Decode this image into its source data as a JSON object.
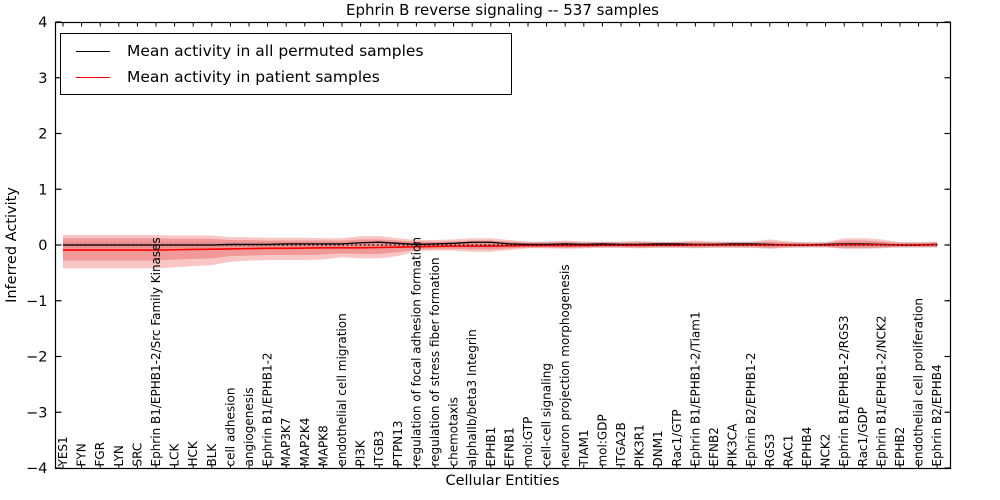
{
  "chart_data": {
    "type": "line",
    "title": "Ephrin B reverse signaling -- 537 samples",
    "xlabel": "Cellular Entities",
    "ylabel": "Inferred Activity",
    "ylim": [
      -4,
      4
    ],
    "yticks": [
      -4,
      -3,
      -2,
      -1,
      0,
      1,
      2,
      3,
      4
    ],
    "grid": false,
    "legend_position": "upper left",
    "zero_line": {
      "y": 0,
      "color": "#000000",
      "style": "dotted"
    },
    "categories": [
      "YES1",
      "FYN",
      "FGR",
      "LYN",
      "SRC",
      "Ephrin B1/EPHB1-2/Src Family Kinases",
      "LCK",
      "HCK",
      "BLK",
      "cell adhesion",
      "angiogenesis",
      "Ephrin B1/EPHB1-2",
      "MAP3K7",
      "MAP2K4",
      "MAPK8",
      "endothelial cell migration",
      "PI3K",
      "ITGB3",
      "PTPN13",
      "regulation of focal adhesion formation",
      "regulation of stress fiber formation",
      "chemotaxis",
      "alphaIIb/beta3 Integrin",
      "EPHB1",
      "EFNB1",
      "mol:GTP",
      "cell-cell signaling",
      "neuron projection morphogenesis",
      "TIAM1",
      "mol:GDP",
      "ITGA2B",
      "PIK3R1",
      "DNM1",
      "Rac1/GTP",
      "Ephrin B1/EPHB1-2/Tiam1",
      "EFNB2",
      "PIK3CA",
      "Ephrin B2/EPHB1-2",
      "RGS3",
      "RAC1",
      "EPHB4",
      "NCK2",
      "Ephrin B1/EPHB1-2/RGS3",
      "Rac1/GDP",
      "Ephrin B1/EPHB1-2/NCK2",
      "EPHB2",
      "endothelial cell proliferation",
      "Ephrin B2/EPHB4"
    ],
    "series": [
      {
        "name": "Mean activity in all permuted samples",
        "color": "#000000",
        "values": [
          0,
          0,
          0,
          0,
          0,
          0,
          0,
          0,
          0,
          0.01,
          0.01,
          0.01,
          0.02,
          0.02,
          0.02,
          0.02,
          0.04,
          0.05,
          0.03,
          0.01,
          0.02,
          0.03,
          0.05,
          0.05,
          0.02,
          0.01,
          0.01,
          0.02,
          0.01,
          0.02,
          0.01,
          0.01,
          0.02,
          0.02,
          0.01,
          0.01,
          0.02,
          0.02,
          0.01,
          0,
          0,
          0.01,
          0.02,
          0.02,
          0.01,
          0,
          0,
          0.01
        ]
      },
      {
        "name": "Mean activity in patient samples",
        "color": "#ff0000",
        "values": [
          -0.09,
          -0.09,
          -0.09,
          -0.09,
          -0.09,
          -0.09,
          -0.085,
          -0.08,
          -0.075,
          -0.07,
          -0.065,
          -0.06,
          -0.06,
          -0.055,
          -0.05,
          -0.05,
          -0.05,
          -0.045,
          -0.04,
          -0.03,
          -0.025,
          -0.02,
          -0.02,
          -0.02,
          -0.015,
          -0.01,
          -0.01,
          -0.01,
          -0.01,
          -0.005,
          -0.005,
          -0.005,
          -0.005,
          -0.005,
          0,
          0,
          0,
          0,
          0,
          0,
          0,
          0,
          0.005,
          0.005,
          0.005,
          0,
          0,
          0.01
        ]
      }
    ],
    "bands": [
      {
        "name": "permuted-sample-band",
        "color": "#d9d9d9",
        "opacity": 0.85,
        "upper": [
          0.05,
          0.05,
          0.05,
          0.05,
          0.05,
          0.05,
          0.05,
          0.05,
          0.05,
          0.05,
          0.05,
          0.05,
          0.05,
          0.05,
          0.05,
          0.05,
          0.05,
          0.05,
          0.05,
          0.05,
          0.05,
          0.05,
          0.05,
          0.05,
          0.05,
          0.05,
          0.05,
          0.05,
          0.05,
          0.05,
          0.05,
          0.05,
          0.05,
          0.05,
          0.05,
          0.05,
          0.05,
          0.05,
          0.05,
          0.05,
          0.05,
          0.05,
          0.05,
          0.05,
          0.05,
          0.05,
          0.05,
          0.05
        ],
        "lower": [
          -0.05,
          -0.05,
          -0.05,
          -0.05,
          -0.05,
          -0.05,
          -0.05,
          -0.05,
          -0.05,
          -0.05,
          -0.05,
          -0.05,
          -0.05,
          -0.05,
          -0.05,
          -0.05,
          -0.05,
          -0.05,
          -0.05,
          -0.05,
          -0.05,
          -0.05,
          -0.05,
          -0.05,
          -0.05,
          -0.05,
          -0.05,
          -0.05,
          -0.05,
          -0.05,
          -0.05,
          -0.05,
          -0.05,
          -0.05,
          -0.05,
          -0.05,
          -0.05,
          -0.05,
          -0.05,
          -0.05,
          -0.05,
          -0.05,
          -0.05,
          -0.05,
          -0.05,
          -0.05,
          -0.05,
          -0.05
        ]
      },
      {
        "name": "patient-band-outer",
        "color": "#ee6666",
        "opacity": 0.38,
        "upper": [
          0.18,
          0.18,
          0.18,
          0.18,
          0.18,
          0.18,
          0.17,
          0.17,
          0.17,
          0.14,
          0.14,
          0.13,
          0.13,
          0.13,
          0.12,
          0.12,
          0.16,
          0.16,
          0.12,
          0.09,
          0.09,
          0.1,
          0.12,
          0.12,
          0.09,
          0.06,
          0.06,
          0.08,
          0.06,
          0.06,
          0.06,
          0.07,
          0.06,
          0.06,
          0.08,
          0.06,
          0.06,
          0.06,
          0.1,
          0.06,
          0.05,
          0.05,
          0.12,
          0.12,
          0.1,
          0.05,
          0.05,
          0.06
        ],
        "lower": [
          -0.42,
          -0.42,
          -0.42,
          -0.42,
          -0.42,
          -0.42,
          -0.4,
          -0.38,
          -0.36,
          -0.3,
          -0.28,
          -0.27,
          -0.27,
          -0.27,
          -0.26,
          -0.22,
          -0.24,
          -0.24,
          -0.2,
          -0.11,
          -0.1,
          -0.1,
          -0.12,
          -0.12,
          -0.09,
          -0.06,
          -0.06,
          -0.07,
          -0.06,
          -0.05,
          -0.05,
          -0.06,
          -0.05,
          -0.05,
          -0.06,
          -0.05,
          -0.05,
          -0.05,
          -0.07,
          -0.05,
          -0.04,
          -0.04,
          -0.07,
          -0.07,
          -0.06,
          -0.04,
          -0.04,
          -0.04
        ]
      },
      {
        "name": "patient-band-inner",
        "color": "#e85c5c",
        "opacity": 0.42,
        "upper": [
          0.12,
          0.12,
          0.12,
          0.12,
          0.12,
          0.12,
          0.11,
          0.11,
          0.11,
          0.09,
          0.09,
          0.08,
          0.08,
          0.08,
          0.08,
          0.08,
          0.1,
          0.1,
          0.08,
          0.06,
          0.06,
          0.06,
          0.08,
          0.08,
          0.06,
          0.04,
          0.04,
          0.05,
          0.04,
          0.04,
          0.04,
          0.05,
          0.04,
          0.04,
          0.05,
          0.04,
          0.04,
          0.04,
          0.06,
          0.04,
          0.03,
          0.03,
          0.08,
          0.08,
          0.06,
          0.03,
          0.03,
          0.04
        ],
        "lower": [
          -0.28,
          -0.28,
          -0.28,
          -0.28,
          -0.28,
          -0.28,
          -0.26,
          -0.25,
          -0.24,
          -0.2,
          -0.19,
          -0.18,
          -0.18,
          -0.18,
          -0.17,
          -0.15,
          -0.16,
          -0.16,
          -0.13,
          -0.08,
          -0.07,
          -0.07,
          -0.08,
          -0.08,
          -0.06,
          -0.04,
          -0.04,
          -0.05,
          -0.04,
          -0.03,
          -0.03,
          -0.04,
          -0.03,
          -0.03,
          -0.04,
          -0.03,
          -0.03,
          -0.03,
          -0.05,
          -0.03,
          -0.03,
          -0.03,
          -0.05,
          -0.05,
          -0.04,
          -0.03,
          -0.03,
          -0.03
        ]
      }
    ]
  }
}
